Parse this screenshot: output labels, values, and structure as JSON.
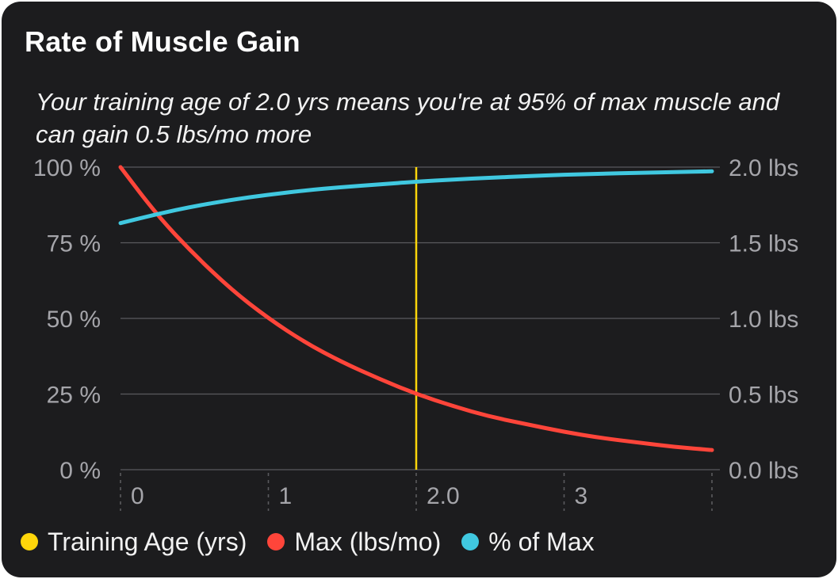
{
  "card": {
    "title": "Rate of Muscle Gain",
    "subtitle": "Your training age of 2.0 yrs means you're at 95% of max muscle and can gain 0.5 lbs/mo more"
  },
  "colors": {
    "background": "#1c1c1e",
    "training_age": "#ffd60a",
    "max_lbs": "#ff453a",
    "pct_of_max": "#40c8e0",
    "grid": "#5a5a5e",
    "tick_text": "#a5a5aa"
  },
  "chart_data": {
    "type": "line",
    "x_range": [
      0,
      4
    ],
    "x_ticks": [
      {
        "value": 0,
        "label": "0"
      },
      {
        "value": 1,
        "label": "1"
      },
      {
        "value": 2,
        "label": "2.0"
      },
      {
        "value": 3,
        "label": "3"
      }
    ],
    "y_left": {
      "range": [
        0,
        100
      ],
      "ticks": [
        {
          "value": 100,
          "label": "100 %"
        },
        {
          "value": 75,
          "label": "75 %"
        },
        {
          "value": 50,
          "label": "50 %"
        },
        {
          "value": 25,
          "label": "25 %"
        },
        {
          "value": 0,
          "label": "0 %"
        }
      ]
    },
    "y_right": {
      "range": [
        0,
        2
      ],
      "ticks": [
        {
          "value": 2,
          "label": "2.0 lbs"
        },
        {
          "value": 1.5,
          "label": "1.5 lbs"
        },
        {
          "value": 1,
          "label": "1.0 lbs"
        },
        {
          "value": 0.5,
          "label": "0.5 lbs"
        },
        {
          "value": 0,
          "label": "0.0 lbs"
        }
      ]
    },
    "training_age_marker": 2.0,
    "series": [
      {
        "name": "Max (lbs/mo)",
        "axis": "right",
        "x": [
          0,
          0.25,
          0.5,
          0.75,
          1.0,
          1.25,
          1.5,
          1.75,
          2.0,
          2.25,
          2.5,
          2.75,
          3.0,
          3.25,
          3.5,
          3.75,
          4.0
        ],
        "values": [
          2.0,
          1.68,
          1.42,
          1.19,
          1.0,
          0.84,
          0.71,
          0.6,
          0.5,
          0.42,
          0.35,
          0.3,
          0.25,
          0.21,
          0.18,
          0.15,
          0.13
        ]
      },
      {
        "name": "% of Max",
        "axis": "left",
        "x": [
          0,
          0.25,
          0.5,
          0.75,
          1.0,
          1.25,
          1.5,
          1.75,
          2.0,
          2.25,
          2.5,
          2.75,
          3.0,
          3.25,
          3.5,
          3.75,
          4.0
        ],
        "values": [
          81.5,
          84.5,
          87.1,
          89.2,
          90.9,
          92.3,
          93.4,
          94.3,
          95.2,
          95.9,
          96.5,
          97.0,
          97.5,
          97.8,
          98.1,
          98.4,
          98.6
        ]
      }
    ],
    "legend": {
      "position": "bottom-left",
      "items": [
        "Training Age (yrs)",
        "Max (lbs/mo)",
        "% of Max"
      ]
    }
  }
}
